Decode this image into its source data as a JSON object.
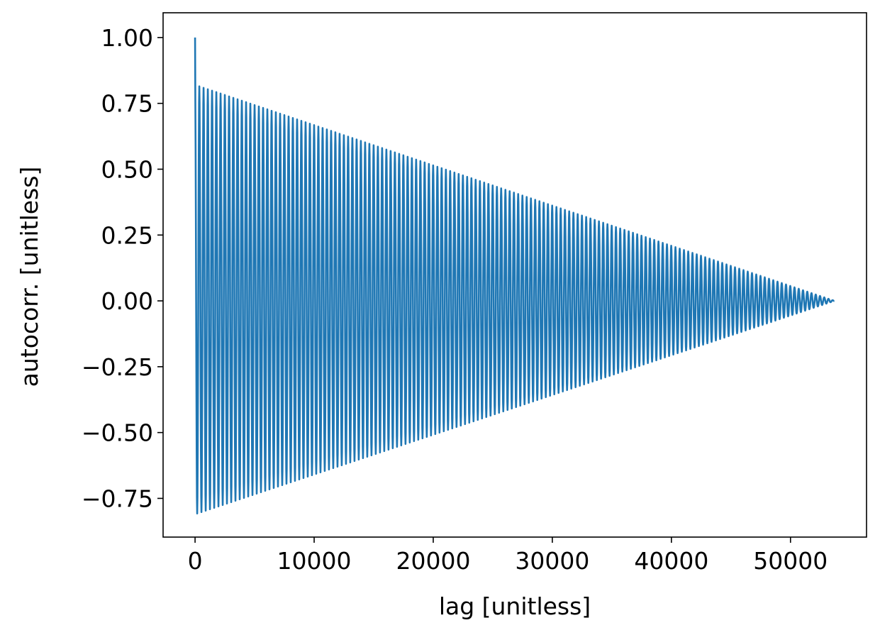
{
  "chart_data": {
    "type": "line",
    "title": "",
    "xlabel": "lag [unitless]",
    "ylabel": "autocorr. [unitless]",
    "xlim": [
      -2685,
      56385
    ],
    "ylim": [
      -0.897,
      1.094
    ],
    "xticks": [
      0,
      10000,
      20000,
      30000,
      40000,
      50000
    ],
    "xtick_labels": [
      "0",
      "10000",
      "20000",
      "30000",
      "40000",
      "50000"
    ],
    "yticks": [
      -0.75,
      -0.5,
      -0.25,
      0.0,
      0.25,
      0.5,
      0.75,
      1.0
    ],
    "ytick_labels": [
      "−0.75",
      "−0.50",
      "−0.25",
      "0.00",
      "0.25",
      "0.50",
      "0.75",
      "1.00"
    ],
    "grid": false,
    "series": [
      {
        "color": "#1f77b4",
        "description_values": {
          "value_at_lag_0": 1.0,
          "oscillation_period": 357,
          "first_peak_positive": 0.82,
          "first_peak_negative": -0.81,
          "max_lag": 53700,
          "value_at_max_lag": 0.0
        }
      }
    ]
  }
}
